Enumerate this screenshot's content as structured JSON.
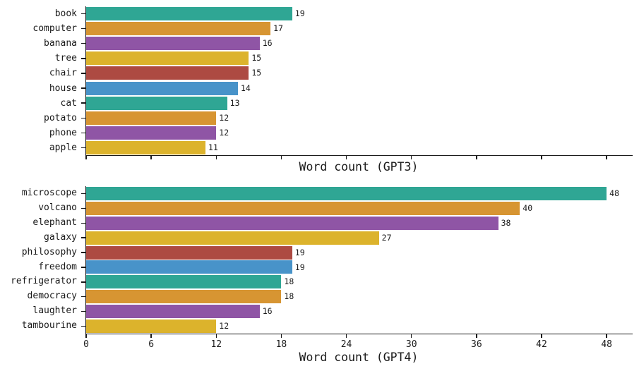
{
  "figure": {
    "background": "#ffffff",
    "text_color": "#1a1a1a",
    "palette": [
      "#2fa694",
      "#d79532",
      "#8f55a5",
      "#dcb32c",
      "#ad4a42",
      "#4893c9"
    ]
  },
  "chart_data": [
    {
      "type": "bar",
      "orientation": "horizontal",
      "xlabel": "Word count (GPT3)",
      "categories": [
        "book",
        "computer",
        "banana",
        "tree",
        "chair",
        "house",
        "cat",
        "potato",
        "phone",
        "apple"
      ],
      "values": [
        19,
        17,
        16,
        15,
        15,
        14,
        13,
        12,
        12,
        11
      ],
      "value_labels": [
        "19",
        "17",
        "16",
        "15",
        "15",
        "14",
        "13",
        "12",
        "12",
        "11"
      ],
      "xlim": [
        0,
        50.4
      ],
      "xticks": [
        0,
        6,
        12,
        18,
        24,
        30,
        36,
        42,
        48
      ],
      "xtick_labels": [
        "0",
        "6",
        "12",
        "18",
        "24",
        "30",
        "36",
        "42",
        "48"
      ],
      "xtick_labels_visible": false,
      "grid": false,
      "legend": null
    },
    {
      "type": "bar",
      "orientation": "horizontal",
      "xlabel": "Word count (GPT4)",
      "categories": [
        "microscope",
        "volcano",
        "elephant",
        "galaxy",
        "philosophy",
        "freedom",
        "refrigerator",
        "democracy",
        "laughter",
        "tambourine"
      ],
      "values": [
        48,
        40,
        38,
        27,
        19,
        19,
        18,
        18,
        16,
        12
      ],
      "value_labels": [
        "48",
        "40",
        "38",
        "27",
        "19",
        "19",
        "18",
        "18",
        "16",
        "12"
      ],
      "xlim": [
        0,
        50.4
      ],
      "xticks": [
        0,
        6,
        12,
        18,
        24,
        30,
        36,
        42,
        48
      ],
      "xtick_labels": [
        "0",
        "6",
        "12",
        "18",
        "24",
        "30",
        "36",
        "42",
        "48"
      ],
      "xtick_labels_visible": true,
      "grid": false,
      "legend": null
    }
  ]
}
